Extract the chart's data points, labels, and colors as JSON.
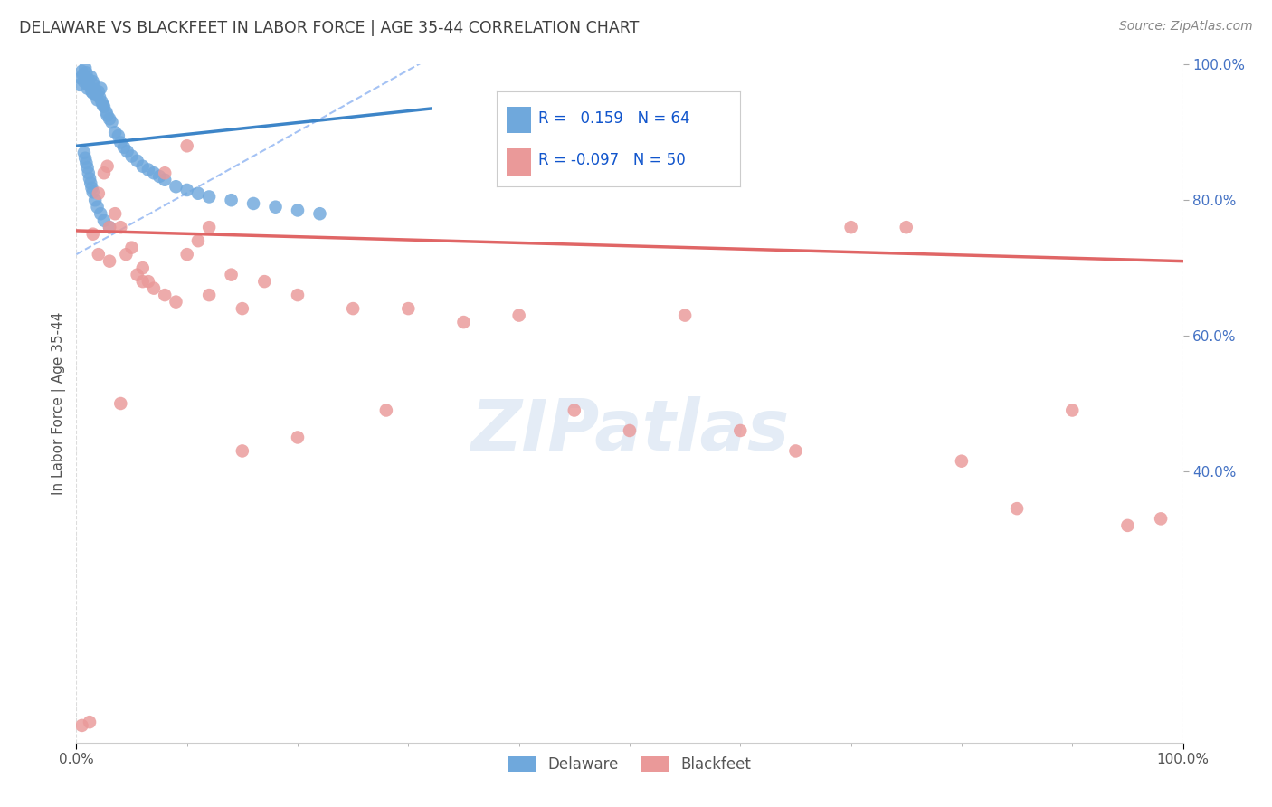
{
  "title": "DELAWARE VS BLACKFEET IN LABOR FORCE | AGE 35-44 CORRELATION CHART",
  "source": "Source: ZipAtlas.com",
  "ylabel": "In Labor Force | Age 35-44",
  "watermark": "ZIPatlas",
  "legend_blue_label": "Delaware",
  "legend_pink_label": "Blackfeet",
  "R_blue": 0.159,
  "N_blue": 64,
  "R_pink": -0.097,
  "N_pink": 50,
  "blue_color": "#6fa8dc",
  "pink_color": "#ea9999",
  "blue_line_color": "#3d85c8",
  "pink_line_color": "#e06666",
  "dashed_line_color": "#a4c2f4",
  "background_color": "#ffffff",
  "grid_color": "#d9d9d9",
  "title_color": "#404040",
  "source_color": "#888888",
  "legend_text_color": "#1155cc",
  "axis_label_color": "#555555",
  "right_tick_color": "#4472c4",
  "xlim": [
    0.0,
    1.0
  ],
  "ylim": [
    0.0,
    1.0
  ],
  "blue_x": [
    0.003,
    0.004,
    0.005,
    0.006,
    0.007,
    0.008,
    0.009,
    0.01,
    0.01,
    0.011,
    0.012,
    0.013,
    0.014,
    0.015,
    0.015,
    0.016,
    0.017,
    0.018,
    0.019,
    0.02,
    0.021,
    0.022,
    0.023,
    0.024,
    0.025,
    0.027,
    0.028,
    0.03,
    0.032,
    0.035,
    0.038,
    0.04,
    0.043,
    0.046,
    0.05,
    0.055,
    0.06,
    0.065,
    0.07,
    0.075,
    0.08,
    0.09,
    0.1,
    0.11,
    0.12,
    0.14,
    0.16,
    0.18,
    0.2,
    0.22,
    0.007,
    0.008,
    0.009,
    0.01,
    0.011,
    0.012,
    0.013,
    0.014,
    0.015,
    0.017,
    0.019,
    0.022,
    0.025,
    0.03
  ],
  "blue_y": [
    0.97,
    0.98,
    0.99,
    0.985,
    0.975,
    0.995,
    0.988,
    0.965,
    0.972,
    0.978,
    0.968,
    0.982,
    0.96,
    0.975,
    0.958,
    0.97,
    0.962,
    0.955,
    0.948,
    0.96,
    0.952,
    0.965,
    0.945,
    0.94,
    0.938,
    0.93,
    0.925,
    0.92,
    0.915,
    0.9,
    0.895,
    0.885,
    0.878,
    0.872,
    0.865,
    0.858,
    0.85,
    0.845,
    0.84,
    0.835,
    0.83,
    0.82,
    0.815,
    0.81,
    0.805,
    0.8,
    0.795,
    0.79,
    0.785,
    0.78,
    0.87,
    0.862,
    0.855,
    0.848,
    0.84,
    0.832,
    0.825,
    0.818,
    0.812,
    0.8,
    0.79,
    0.78,
    0.77,
    0.76
  ],
  "pink_x": [
    0.005,
    0.012,
    0.015,
    0.02,
    0.025,
    0.028,
    0.03,
    0.035,
    0.04,
    0.045,
    0.05,
    0.055,
    0.06,
    0.065,
    0.07,
    0.08,
    0.09,
    0.1,
    0.11,
    0.12,
    0.14,
    0.15,
    0.17,
    0.2,
    0.25,
    0.28,
    0.3,
    0.35,
    0.4,
    0.45,
    0.5,
    0.55,
    0.6,
    0.65,
    0.7,
    0.75,
    0.8,
    0.85,
    0.9,
    0.95,
    0.98,
    0.02,
    0.03,
    0.04,
    0.06,
    0.08,
    0.1,
    0.12,
    0.15,
    0.2
  ],
  "pink_y": [
    0.025,
    0.03,
    0.75,
    0.72,
    0.84,
    0.85,
    0.76,
    0.78,
    0.76,
    0.72,
    0.73,
    0.69,
    0.7,
    0.68,
    0.67,
    0.66,
    0.65,
    0.72,
    0.74,
    0.66,
    0.69,
    0.64,
    0.68,
    0.66,
    0.64,
    0.49,
    0.64,
    0.62,
    0.63,
    0.49,
    0.46,
    0.63,
    0.46,
    0.43,
    0.76,
    0.76,
    0.415,
    0.345,
    0.49,
    0.32,
    0.33,
    0.81,
    0.71,
    0.5,
    0.68,
    0.84,
    0.88,
    0.76,
    0.43,
    0.45
  ],
  "blue_line_x": [
    0.0,
    0.32
  ],
  "blue_line_y_start": 0.88,
  "blue_line_y_end": 0.935,
  "pink_line_x": [
    0.0,
    1.0
  ],
  "pink_line_y_start": 0.755,
  "pink_line_y_end": 0.71,
  "dash_line_x": [
    0.0,
    0.32
  ],
  "dash_line_y_start": 0.72,
  "dash_line_y_end": 1.01
}
